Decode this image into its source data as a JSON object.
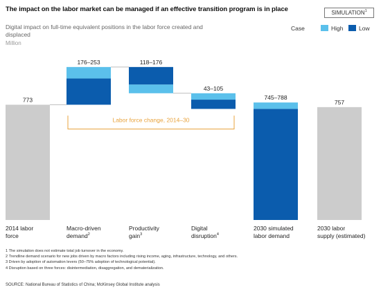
{
  "header": {
    "title": "The impact on the labor market can be managed if an effective transition program is in place",
    "badge": "SIMULATION",
    "badge_note": "1",
    "subtitle": "Digital impact on full-time equivalent positions in the labor force created and displaced",
    "unit": "Million"
  },
  "legend": {
    "title": "Case",
    "items": [
      {
        "label": "High",
        "color": "#5bc0eb"
      },
      {
        "label": "Low",
        "color": "#0b5cad"
      }
    ]
  },
  "categories": [
    {
      "label": "2014 labor\nforce",
      "note": ""
    },
    {
      "label": "Macro-driven\ndemand",
      "note": "2"
    },
    {
      "label": "Productivity\ngain",
      "note": "3"
    },
    {
      "label": "Digital\ndisruption",
      "note": "4"
    },
    {
      "label": "2030 simulated\nlabor demand",
      "note": ""
    },
    {
      "label": "2030 labor\nsupply (estimated)",
      "note": ""
    }
  ],
  "chart_data": {
    "type": "bar",
    "subtype": "waterfall",
    "unit": "Million",
    "ylim": [
      0,
      1030
    ],
    "grid": false,
    "legend_position": "top-right",
    "bars": [
      {
        "category": "2014 labor force",
        "kind": "total",
        "value": 773,
        "label": "773",
        "color": "#cccccc"
      },
      {
        "category": "Macro-driven demand",
        "kind": "increase",
        "low": 176,
        "high": 253,
        "base": 773,
        "label": "176–253"
      },
      {
        "category": "Productivity gain",
        "kind": "decrease",
        "low": 118,
        "high": 176,
        "base": 1026,
        "label": "118–176"
      },
      {
        "category": "Digital disruption",
        "kind": "decrease",
        "low": 43,
        "high": 105,
        "base": 850,
        "label": "43–105"
      },
      {
        "category": "2030 simulated labor demand",
        "kind": "range_total",
        "low": 745,
        "high": 788,
        "label": "745–788"
      },
      {
        "category": "2030 labor supply (estimated)",
        "kind": "total",
        "value": 757,
        "label": "757",
        "color": "#cccccc"
      }
    ],
    "annotation": {
      "label": "Labor force change, 2014–30",
      "color": "#e8a33d"
    }
  },
  "footnotes": [
    "1  The simulation does not estimate total job turnover in the economy.",
    "2  Trendline demand scenario for new jobs driven by macro factors including rising income, aging, infrastructure, technology, and others.",
    "3  Driven by adoption of automation levers (50–75% adoption of technological potential).",
    "4  Disruption based on three forces: disintermediation, disaggregation, and dematerialization."
  ],
  "source": "SOURCE: National Bureau of Statistics of China; McKinsey Global Institute analysis"
}
